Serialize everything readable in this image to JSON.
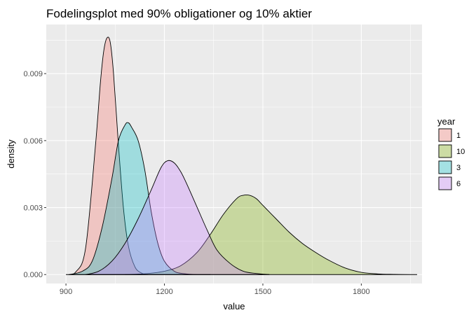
{
  "chart_data": {
    "type": "area",
    "title": "Fodelingsplot med 90% obligationer og 10% aktier",
    "xlabel": "value",
    "ylabel": "density",
    "xlim": [
      840,
      1985
    ],
    "ylim": [
      -0.0004,
      0.0112
    ],
    "xticks": [
      900,
      1200,
      1500,
      1800
    ],
    "xtick_labels": [
      "900",
      "1200",
      "1500",
      "1800"
    ],
    "yticks": [
      0,
      0.003,
      0.006,
      0.009
    ],
    "ytick_labels": [
      "0.000",
      "0.003",
      "0.006",
      "0.009"
    ],
    "grid": true,
    "legend": {
      "title": "year",
      "position": "right"
    },
    "series": [
      {
        "name": "1",
        "color": "#F8766D",
        "x": [
          900,
          930,
          960,
          990,
          1005,
          1015,
          1025,
          1035,
          1045,
          1060,
          1075,
          1090,
          1110,
          1130,
          1150
        ],
        "values": [
          0.0,
          0.00012,
          0.0012,
          0.0058,
          0.0086,
          0.01,
          0.0106,
          0.0104,
          0.009,
          0.0058,
          0.003,
          0.0013,
          0.00035,
          7e-05,
          0.0
        ]
      },
      {
        "name": "10",
        "color": "#7CAE00",
        "x": [
          1080,
          1150,
          1200,
          1250,
          1300,
          1340,
          1380,
          1420,
          1440,
          1460,
          1480,
          1500,
          1540,
          1580,
          1620,
          1660,
          1700,
          1750,
          1800,
          1850,
          1900,
          1950,
          1970
        ],
        "values": [
          0.0,
          5e-05,
          0.00015,
          0.0004,
          0.001,
          0.0018,
          0.0027,
          0.0034,
          0.00355,
          0.00355,
          0.0034,
          0.0031,
          0.0025,
          0.0019,
          0.0014,
          0.001,
          0.00065,
          0.0003,
          0.0001,
          3e-05,
          1e-05,
          0.0,
          0.0
        ]
      },
      {
        "name": "3",
        "color": "#00BFC4",
        "x": [
          910,
          950,
          980,
          1010,
          1040,
          1060,
          1080,
          1090,
          1100,
          1120,
          1140,
          1160,
          1180,
          1200,
          1230,
          1260,
          1300,
          1340
        ],
        "values": [
          0.0,
          0.00015,
          0.0006,
          0.0021,
          0.0043,
          0.006,
          0.0067,
          0.0068,
          0.0066,
          0.006,
          0.0047,
          0.0028,
          0.0014,
          0.0006,
          0.00015,
          4e-05,
          0.0,
          0.0
        ]
      },
      {
        "name": "6",
        "color": "#C77CFF",
        "x": [
          960,
          1000,
          1040,
          1080,
          1120,
          1160,
          1190,
          1210,
          1230,
          1250,
          1270,
          1300,
          1330,
          1360,
          1400,
          1440,
          1480,
          1520
        ],
        "values": [
          0.0,
          0.00015,
          0.0006,
          0.0014,
          0.0025,
          0.0038,
          0.0048,
          0.0051,
          0.005,
          0.0046,
          0.004,
          0.003,
          0.002,
          0.0011,
          0.0005,
          0.00015,
          5e-05,
          0.0
        ]
      }
    ]
  }
}
